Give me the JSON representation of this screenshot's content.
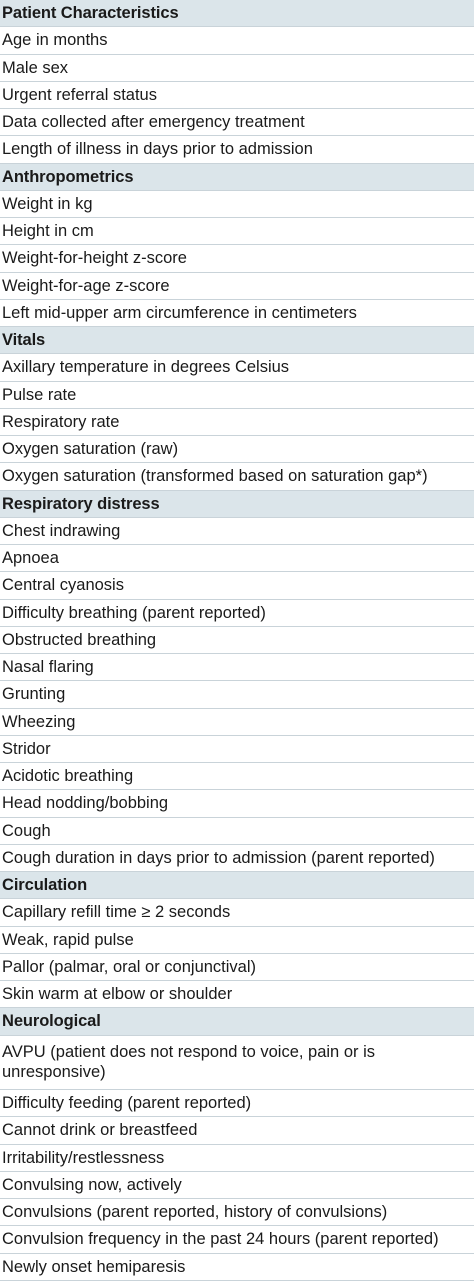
{
  "sections": [
    {
      "title": "Patient Characteristics",
      "items": [
        "Age in months",
        "Male sex",
        "Urgent referral status",
        "Data collected after emergency treatment",
        "Length of illness in days prior to admission"
      ]
    },
    {
      "title": "Anthropometrics",
      "items": [
        "Weight in kg",
        "Height in cm",
        "Weight-for-height z-score",
        "Weight-for-age z-score",
        "Left mid-upper arm circumference in centimeters"
      ]
    },
    {
      "title": "Vitals",
      "items": [
        "Axillary temperature in degrees Celsius",
        "Pulse rate",
        "Respiratory rate",
        "Oxygen saturation (raw)",
        "Oxygen saturation (transformed based on saturation gap*)"
      ]
    },
    {
      "title": "Respiratory distress",
      "items": [
        "Chest indrawing",
        "Apnoea",
        "Central cyanosis",
        "Difficulty breathing (parent reported)",
        "Obstructed breathing",
        "Nasal flaring",
        "Grunting",
        "Wheezing",
        "Stridor",
        "Acidotic breathing",
        "Head nodding/bobbing",
        "Cough",
        "Cough duration in days prior to admission (parent reported)"
      ]
    },
    {
      "title": "Circulation",
      "items": [
        "Capillary refill time ≥ 2 seconds",
        "Weak, rapid pulse",
        "Pallor (palmar, oral or conjunctival)",
        "Skin warm at elbow or shoulder"
      ]
    },
    {
      "title": "Neurological",
      "items": [
        "AVPU (patient does not respond to voice, pain or is unresponsive)",
        "Difficulty feeding (parent reported)",
        "Cannot drink or breastfeed",
        "Irritability/restlessness",
        "Convulsing now, actively",
        "Convulsions (parent reported, history of convulsions)",
        "Convulsion frequency in the past 24 hours (parent reported)",
        "Newly onset hemiparesis"
      ]
    }
  ]
}
